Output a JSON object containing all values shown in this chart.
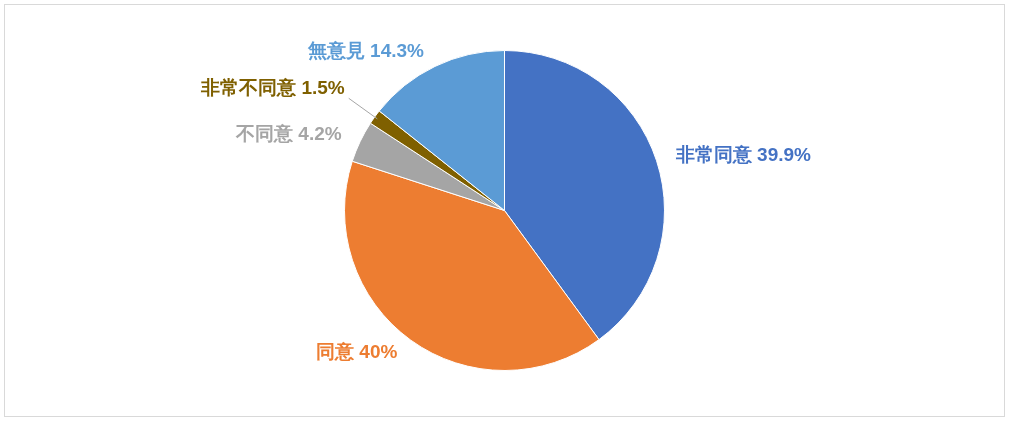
{
  "chart_data": {
    "type": "pie",
    "categories": [
      "非常同意",
      "同意",
      "不同意",
      "非常不同意",
      "無意見"
    ],
    "values": [
      39.9,
      40,
      4.2,
      1.5,
      14.3
    ],
    "value_labels": [
      "39.9%",
      "40%",
      "4.2%",
      "1.5%",
      "14.3%"
    ],
    "colors": [
      "#4472c4",
      "#ed7d31",
      "#a5a5a5",
      "#7f6000",
      "#5b9bd5"
    ],
    "legend": false
  }
}
